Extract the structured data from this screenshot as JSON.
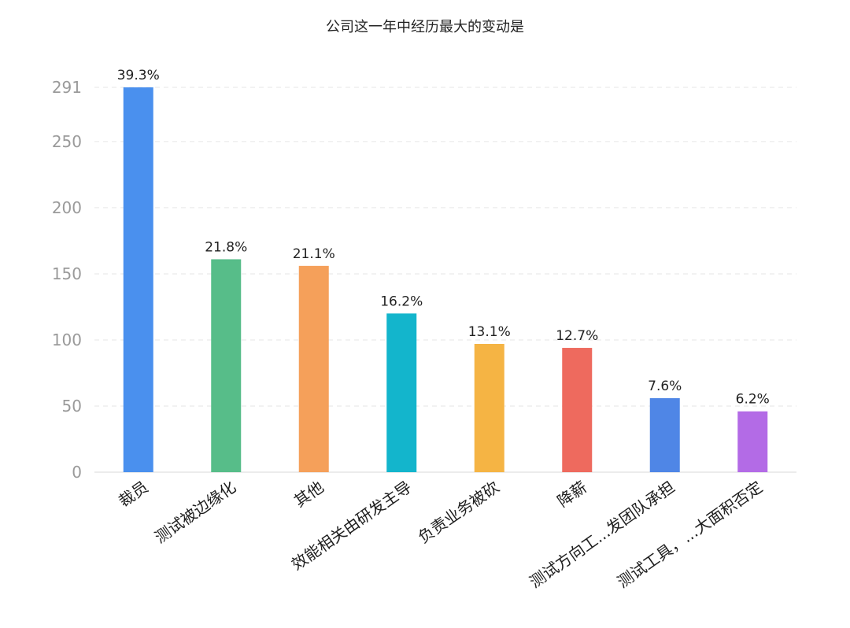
{
  "chart_data": {
    "type": "bar",
    "title": "公司这一年中经历最大的变动是",
    "categories": [
      "裁员",
      "测试被边缘化",
      "其他",
      "效能相关由研发主导",
      "负责业务被砍",
      "降薪",
      "测试方向工...发团队承担",
      "测试工具，...大面积否定"
    ],
    "values": [
      291,
      161,
      156,
      120,
      97,
      94,
      56,
      46
    ],
    "data_labels": [
      "39.3%",
      "21.8%",
      "21.1%",
      "16.2%",
      "13.1%",
      "12.7%",
      "7.6%",
      "6.2%"
    ],
    "colors": [
      "#4A90EE",
      "#57BD89",
      "#F5A05A",
      "#13B5CC",
      "#F5B444",
      "#EE6A5E",
      "#4F86E6",
      "#B36BE6"
    ],
    "y_ticks": [
      0,
      50,
      100,
      150,
      200,
      250,
      291
    ],
    "ylim": [
      0,
      291
    ],
    "grid": true,
    "legend": "none"
  }
}
